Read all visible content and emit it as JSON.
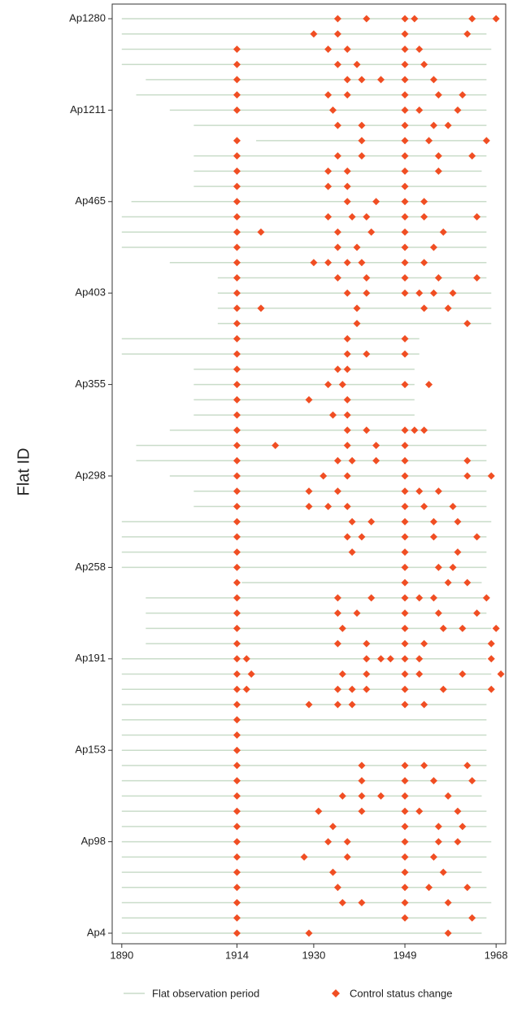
{
  "chart_data": {
    "type": "timeline",
    "y_label": "Flat ID",
    "categories": [
      "Ap4",
      null,
      null,
      null,
      null,
      null,
      "Ap98",
      null,
      null,
      null,
      null,
      null,
      "Ap153",
      null,
      null,
      null,
      null,
      null,
      "Ap191",
      null,
      null,
      null,
      null,
      null,
      "Ap258",
      null,
      null,
      null,
      null,
      null,
      "Ap298",
      null,
      null,
      null,
      null,
      null,
      "Ap355",
      null,
      null,
      null,
      null,
      null,
      "Ap403",
      null,
      null,
      null,
      null,
      null,
      "Ap465",
      null,
      null,
      null,
      null,
      null,
      "Ap1211",
      null,
      null,
      null,
      null,
      null,
      "Ap1280"
    ],
    "xlim": [
      1888,
      1970
    ],
    "xticks": [
      1890,
      1914,
      1930,
      1949,
      1968
    ],
    "series": [
      {
        "name": "Flat observation period",
        "color": "#c9dcc9",
        "values": [
          [
            1890,
            1965
          ],
          [
            1890,
            1966
          ],
          [
            1890,
            1967
          ],
          [
            1890,
            1966
          ],
          [
            1890,
            1965
          ],
          [
            1890,
            1966
          ],
          [
            1890,
            1967
          ],
          [
            1890,
            1966
          ],
          [
            1890,
            1966
          ],
          [
            1890,
            1965
          ],
          [
            1890,
            1966
          ],
          [
            1890,
            1966
          ],
          [
            1890,
            1966
          ],
          [
            1890,
            1966
          ],
          [
            1890,
            1966
          ],
          [
            1890,
            1966
          ],
          [
            1890,
            1967
          ],
          [
            1890,
            1967
          ],
          [
            1890,
            1966
          ],
          [
            1895,
            1967
          ],
          [
            1895,
            1967
          ],
          [
            1895,
            1966
          ],
          [
            1895,
            1966
          ],
          [
            1915,
            1965
          ],
          [
            1890,
            1966
          ],
          [
            1890,
            1966
          ],
          [
            1890,
            1966
          ],
          [
            1890,
            1967
          ],
          [
            1905,
            1966
          ],
          [
            1905,
            1966
          ],
          [
            1900,
            1967
          ],
          [
            1893,
            1966
          ],
          [
            1893,
            1966
          ],
          [
            1900,
            1966
          ],
          [
            1905,
            1951
          ],
          [
            1905,
            1951
          ],
          [
            1905,
            1951
          ],
          [
            1905,
            1951
          ],
          [
            1890,
            1952
          ],
          [
            1890,
            1952
          ],
          [
            1910,
            1967
          ],
          [
            1910,
            1967
          ],
          [
            1910,
            1967
          ],
          [
            1910,
            1966
          ],
          [
            1900,
            1966
          ],
          [
            1890,
            1966
          ],
          [
            1890,
            1966
          ],
          [
            1890,
            1966
          ],
          [
            1892,
            1966
          ],
          [
            1905,
            1966
          ],
          [
            1905,
            1965
          ],
          [
            1905,
            1966
          ],
          [
            1918,
            1966
          ],
          [
            1905,
            1966
          ],
          [
            1900,
            1966
          ],
          [
            1893,
            1966
          ],
          [
            1895,
            1966
          ],
          [
            1890,
            1966
          ],
          [
            1890,
            1967
          ],
          [
            1890,
            1966
          ],
          [
            1890,
            1968
          ]
        ]
      },
      {
        "name": "Control status change",
        "color": "#f04e23",
        "values": [
          [
            1914,
            1929,
            1958
          ],
          [
            1914,
            1949,
            1963
          ],
          [
            1914,
            1936,
            1940,
            1949,
            1958
          ],
          [
            1914,
            1935,
            1949,
            1954,
            1962
          ],
          [
            1914,
            1934,
            1949,
            1957
          ],
          [
            1914,
            1928,
            1937,
            1949,
            1955
          ],
          [
            1914,
            1933,
            1937,
            1949,
            1956,
            1960
          ],
          [
            1914,
            1934,
            1949,
            1956,
            1961
          ],
          [
            1914,
            1931,
            1940,
            1949,
            1952,
            1960
          ],
          [
            1914,
            1936,
            1940,
            1944,
            1949,
            1958
          ],
          [
            1914,
            1940,
            1949,
            1955,
            1963
          ],
          [
            1914,
            1940,
            1949,
            1953,
            1962
          ],
          [
            1914
          ],
          [
            1914
          ],
          [
            1914
          ],
          [
            1914,
            1929,
            1935,
            1938,
            1949,
            1953
          ],
          [
            1914,
            1916,
            1935,
            1938,
            1941,
            1949,
            1957,
            1967
          ],
          [
            1914,
            1917,
            1936,
            1941,
            1949,
            1952,
            1961,
            1969
          ],
          [
            1914,
            1916,
            1941,
            1944,
            1946,
            1949,
            1952,
            1967
          ],
          [
            1914,
            1935,
            1941,
            1949,
            1953,
            1967
          ],
          [
            1914,
            1936,
            1949,
            1957,
            1961,
            1968
          ],
          [
            1914,
            1935,
            1939,
            1949,
            1956,
            1964
          ],
          [
            1914,
            1935,
            1942,
            1949,
            1952,
            1955,
            1966
          ],
          [
            1914,
            1949,
            1958,
            1962
          ],
          [
            1914,
            1949,
            1956,
            1959
          ],
          [
            1914,
            1938,
            1949,
            1960
          ],
          [
            1914,
            1937,
            1940,
            1949,
            1955,
            1964
          ],
          [
            1914,
            1938,
            1942,
            1949,
            1955,
            1960
          ],
          [
            1914,
            1929,
            1933,
            1937,
            1949,
            1953,
            1959
          ],
          [
            1914,
            1929,
            1935,
            1949,
            1952,
            1956
          ],
          [
            1914,
            1932,
            1937,
            1949,
            1962,
            1967
          ],
          [
            1914,
            1935,
            1938,
            1943,
            1949,
            1962
          ],
          [
            1914,
            1922,
            1937,
            1943,
            1949
          ],
          [
            1914,
            1937,
            1941,
            1949,
            1951,
            1953
          ],
          [
            1914,
            1934,
            1937
          ],
          [
            1914,
            1929,
            1937
          ],
          [
            1914,
            1933,
            1936,
            1949,
            1954
          ],
          [
            1914,
            1935,
            1937
          ],
          [
            1914,
            1937,
            1941,
            1949
          ],
          [
            1914,
            1937,
            1949
          ],
          [
            1914,
            1939,
            1962
          ],
          [
            1914,
            1919,
            1939,
            1953,
            1958
          ],
          [
            1914,
            1937,
            1941,
            1949,
            1952,
            1955,
            1959
          ],
          [
            1914,
            1935,
            1941,
            1949,
            1956,
            1964
          ],
          [
            1914,
            1930,
            1933,
            1937,
            1940,
            1949,
            1953
          ],
          [
            1914,
            1935,
            1939,
            1949,
            1955
          ],
          [
            1914,
            1919,
            1935,
            1942,
            1949,
            1957
          ],
          [
            1914,
            1933,
            1938,
            1941,
            1949,
            1953,
            1964
          ],
          [
            1914,
            1937,
            1943,
            1949,
            1953
          ],
          [
            1914,
            1933,
            1937,
            1949
          ],
          [
            1914,
            1933,
            1937,
            1949,
            1956
          ],
          [
            1914,
            1935,
            1940,
            1949,
            1956,
            1963
          ],
          [
            1914,
            1940,
            1949,
            1954,
            1966
          ],
          [
            1935,
            1940,
            1949,
            1955,
            1958
          ],
          [
            1914,
            1934,
            1949,
            1952,
            1960
          ],
          [
            1914,
            1933,
            1937,
            1949,
            1956,
            1961
          ],
          [
            1914,
            1937,
            1940,
            1944,
            1949,
            1955
          ],
          [
            1914,
            1935,
            1939,
            1949,
            1953
          ],
          [
            1914,
            1933,
            1937,
            1949,
            1952
          ],
          [
            1930,
            1935,
            1949,
            1962
          ],
          [
            1935,
            1941,
            1949,
            1951,
            1963,
            1968
          ]
        ]
      }
    ]
  }
}
